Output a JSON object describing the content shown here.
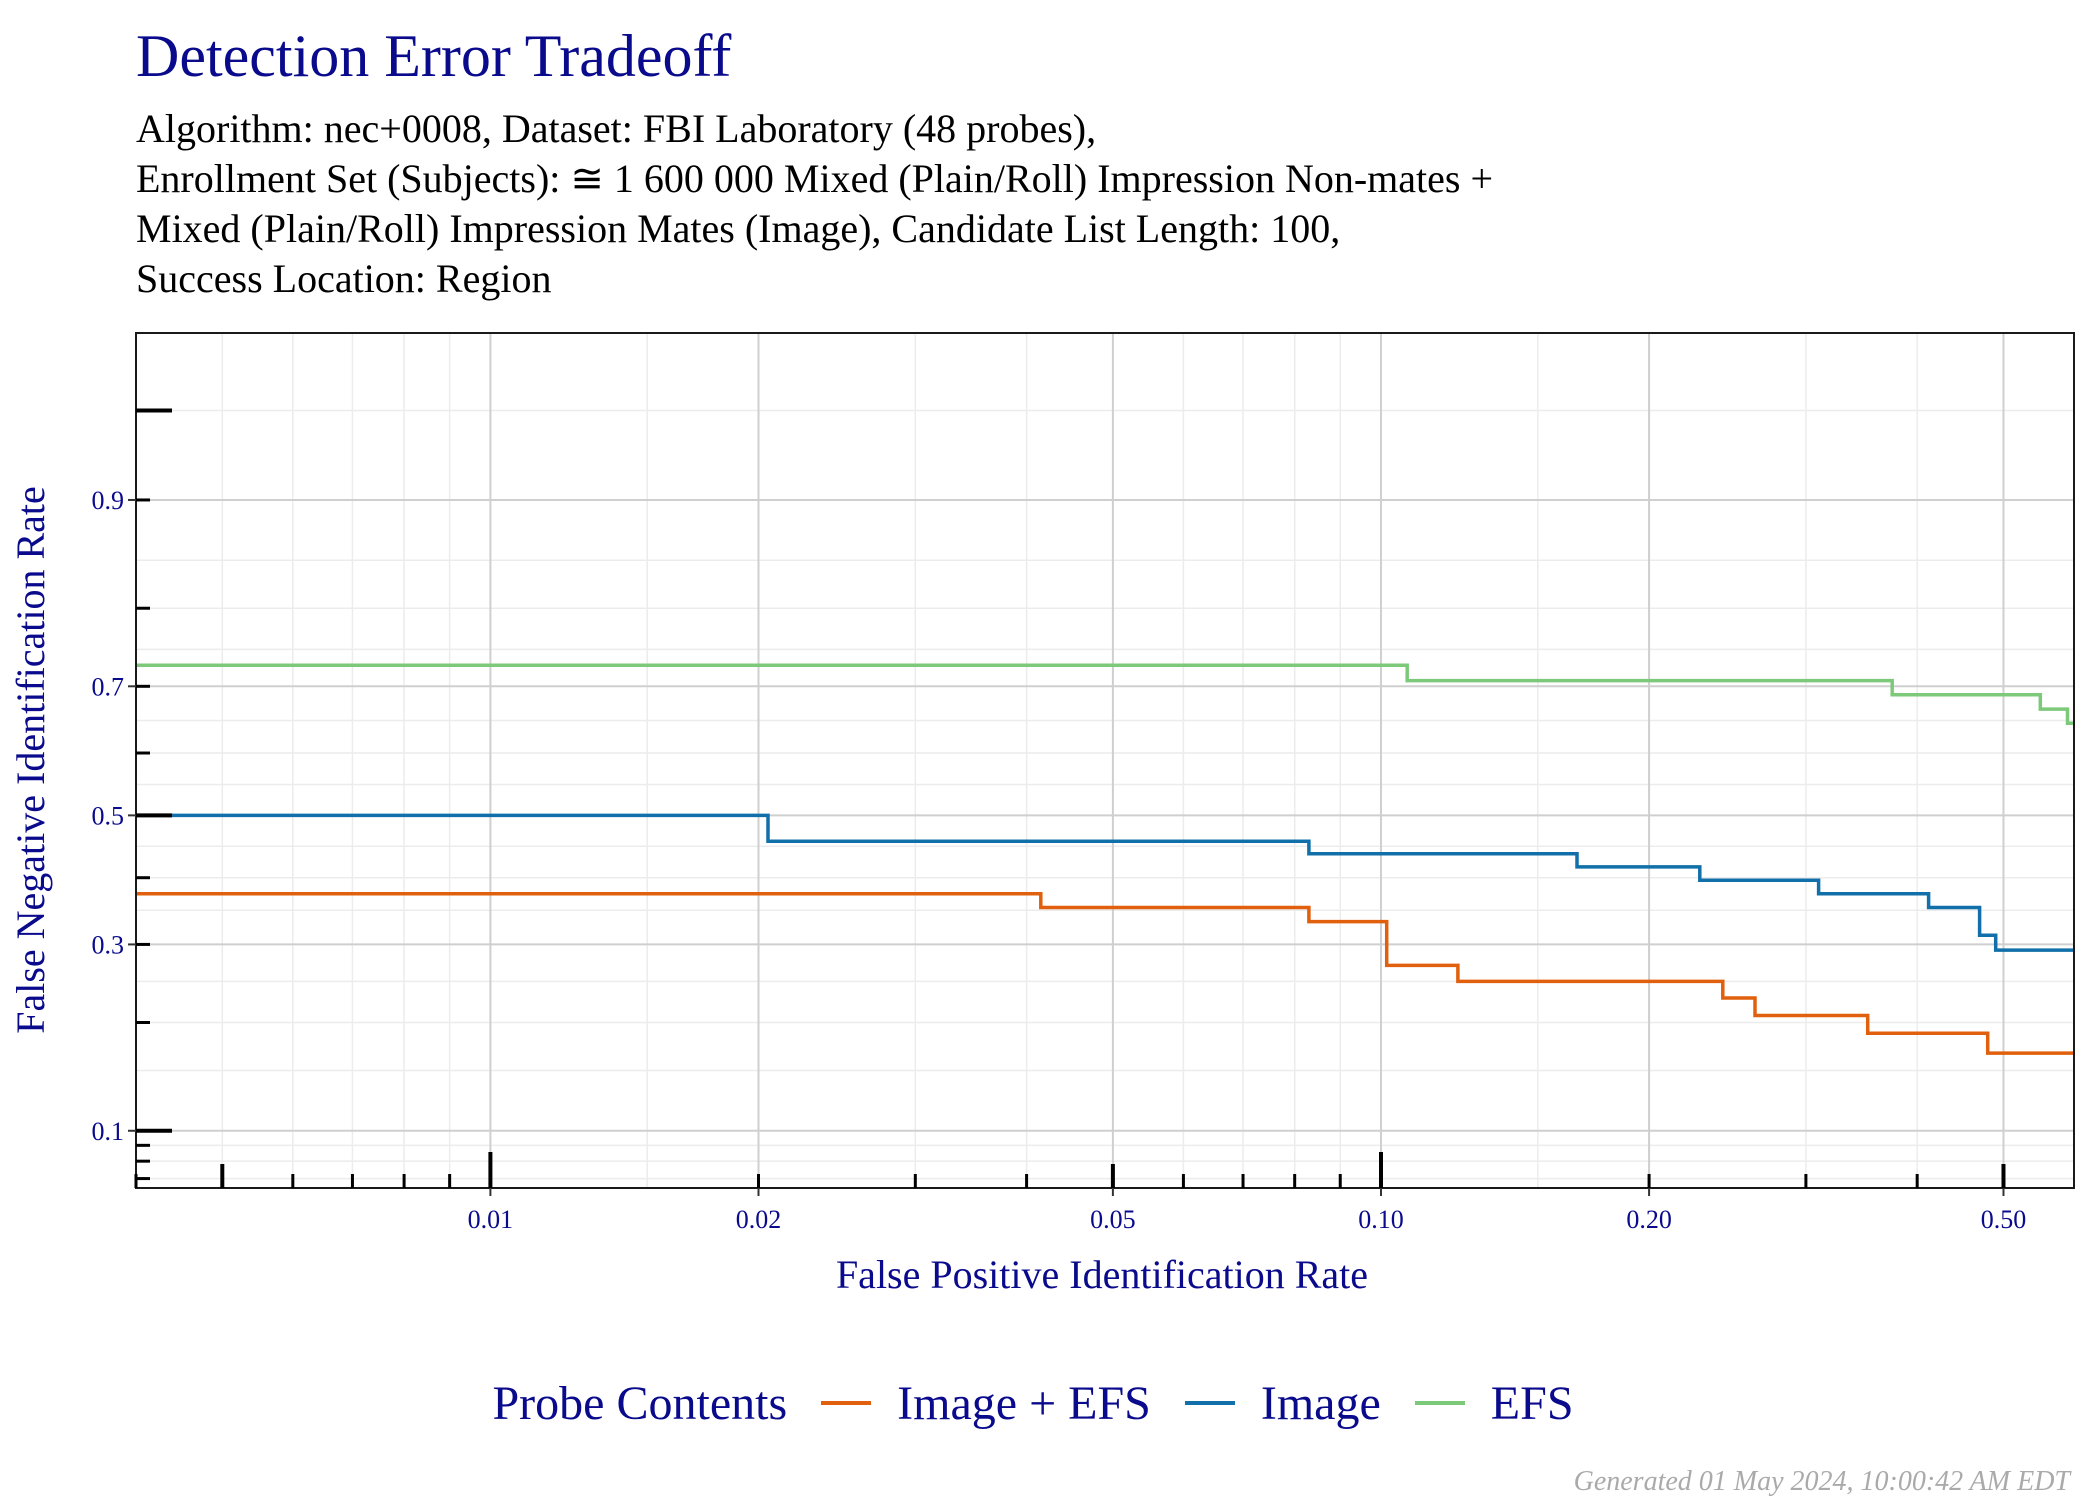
{
  "chart_data": {
    "type": "line",
    "step": true,
    "title": "Detection Error Tradeoff",
    "subtitle": [
      "Algorithm: nec+0008, Dataset: FBI Laboratory (48 probes),",
      "Enrollment Set (Subjects): ≅ 1 600 000 Mixed (Plain/Roll) Impression Non-mates +",
      "Mixed (Plain/Roll) Impression Mates (Image), Candidate List Length: 100,",
      "Success Location: Region"
    ],
    "xlabel": "False Positive Identification Rate",
    "ylabel": "False Negative Identification Rate",
    "x_scale": "log",
    "y_scale": "probit",
    "xlim": [
      0.004,
      0.6
    ],
    "ylim": [
      0.065,
      0.975
    ],
    "x_ticks": [
      0.01,
      0.02,
      0.05,
      0.1,
      0.2,
      0.5
    ],
    "x_tick_labels": [
      "0.01",
      "0.02",
      "0.05",
      "0.10",
      "0.20",
      "0.50"
    ],
    "y_ticks": [
      0.1,
      0.3,
      0.5,
      0.7,
      0.9
    ],
    "y_tick_labels": [
      "0.1",
      "0.3",
      "0.5",
      "0.7",
      "0.9"
    ],
    "grid": true,
    "legend": {
      "title": "Probe Contents",
      "position": "bottom"
    },
    "series": [
      {
        "name": "Image + EFS",
        "color": "#e0600d",
        "points": [
          [
            0.004,
            0.375
          ],
          [
            0.0415,
            0.375
          ],
          [
            0.0415,
            0.354
          ],
          [
            0.083,
            0.354
          ],
          [
            0.083,
            0.333
          ],
          [
            0.1015,
            0.333
          ],
          [
            0.1015,
            0.271
          ],
          [
            0.122,
            0.271
          ],
          [
            0.122,
            0.25
          ],
          [
            0.242,
            0.25
          ],
          [
            0.242,
            0.229
          ],
          [
            0.263,
            0.229
          ],
          [
            0.263,
            0.208
          ],
          [
            0.352,
            0.208
          ],
          [
            0.352,
            0.188
          ],
          [
            0.48,
            0.188
          ],
          [
            0.48,
            0.167
          ],
          [
            0.6,
            0.167
          ]
        ]
      },
      {
        "name": "Image",
        "color": "#1170aa",
        "points": [
          [
            0.004,
            0.5
          ],
          [
            0.0205,
            0.5
          ],
          [
            0.0205,
            0.458
          ],
          [
            0.083,
            0.458
          ],
          [
            0.083,
            0.438
          ],
          [
            0.166,
            0.438
          ],
          [
            0.166,
            0.417
          ],
          [
            0.228,
            0.417
          ],
          [
            0.228,
            0.396
          ],
          [
            0.31,
            0.396
          ],
          [
            0.31,
            0.375
          ],
          [
            0.412,
            0.375
          ],
          [
            0.412,
            0.354
          ],
          [
            0.47,
            0.354
          ],
          [
            0.47,
            0.313
          ],
          [
            0.49,
            0.313
          ],
          [
            0.49,
            0.292
          ],
          [
            0.6,
            0.292
          ]
        ]
      },
      {
        "name": "EFS",
        "color": "#7dc97a",
        "points": [
          [
            0.004,
            0.729
          ],
          [
            0.107,
            0.729
          ],
          [
            0.107,
            0.708
          ],
          [
            0.375,
            0.708
          ],
          [
            0.375,
            0.688
          ],
          [
            0.55,
            0.688
          ],
          [
            0.55,
            0.667
          ],
          [
            0.59,
            0.667
          ],
          [
            0.59,
            0.646
          ],
          [
            0.6,
            0.646
          ]
        ]
      }
    ]
  },
  "footer": "Generated 01 May 2024, 10:00:42 AM EDT"
}
